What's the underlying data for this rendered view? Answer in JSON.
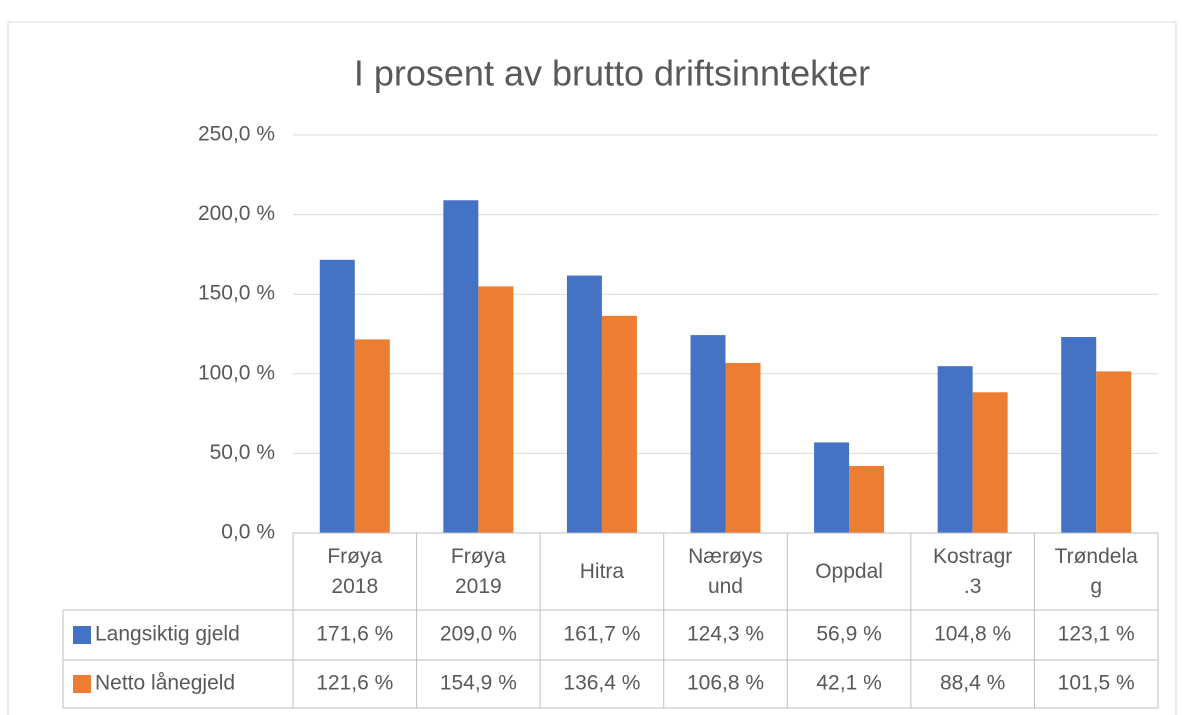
{
  "chart_data": {
    "type": "bar",
    "title": "I prosent av brutto driftsinntekter",
    "categories": [
      "Frøya 2018",
      "Frøya 2019",
      "Hitra",
      "Nærøysund",
      "Oppdal",
      "Kostragr.3",
      "Trøndelag"
    ],
    "series": [
      {
        "name": "Langsiktig gjeld",
        "color": "#4472c4",
        "values": [
          171.6,
          209.0,
          161.7,
          124.3,
          56.9,
          104.8,
          123.1
        ],
        "value_labels": [
          "171,6 %",
          "209,0 %",
          "161,7 %",
          "124,3 %",
          "56,9 %",
          "104,8 %",
          "123,1 %"
        ]
      },
      {
        "name": "Netto lånegjeld",
        "color": "#ed7d31",
        "values": [
          121.6,
          154.9,
          136.4,
          106.8,
          42.1,
          88.4,
          101.5
        ],
        "value_labels": [
          "121,6 %",
          "154,9 %",
          "136,4 %",
          "106,8 %",
          "42,1 %",
          "88,4 %",
          "101,5 %"
        ]
      }
    ],
    "ylim": [
      0,
      250
    ],
    "yticks": [
      {
        "value": 0,
        "label": "0,0 %"
      },
      {
        "value": 50,
        "label": "50,0 %"
      },
      {
        "value": 100,
        "label": "100,0 %"
      },
      {
        "value": 150,
        "label": "150,0 %"
      },
      {
        "value": 200,
        "label": "200,0 %"
      },
      {
        "value": 250,
        "label": "250,0 %"
      }
    ],
    "grid": true
  }
}
